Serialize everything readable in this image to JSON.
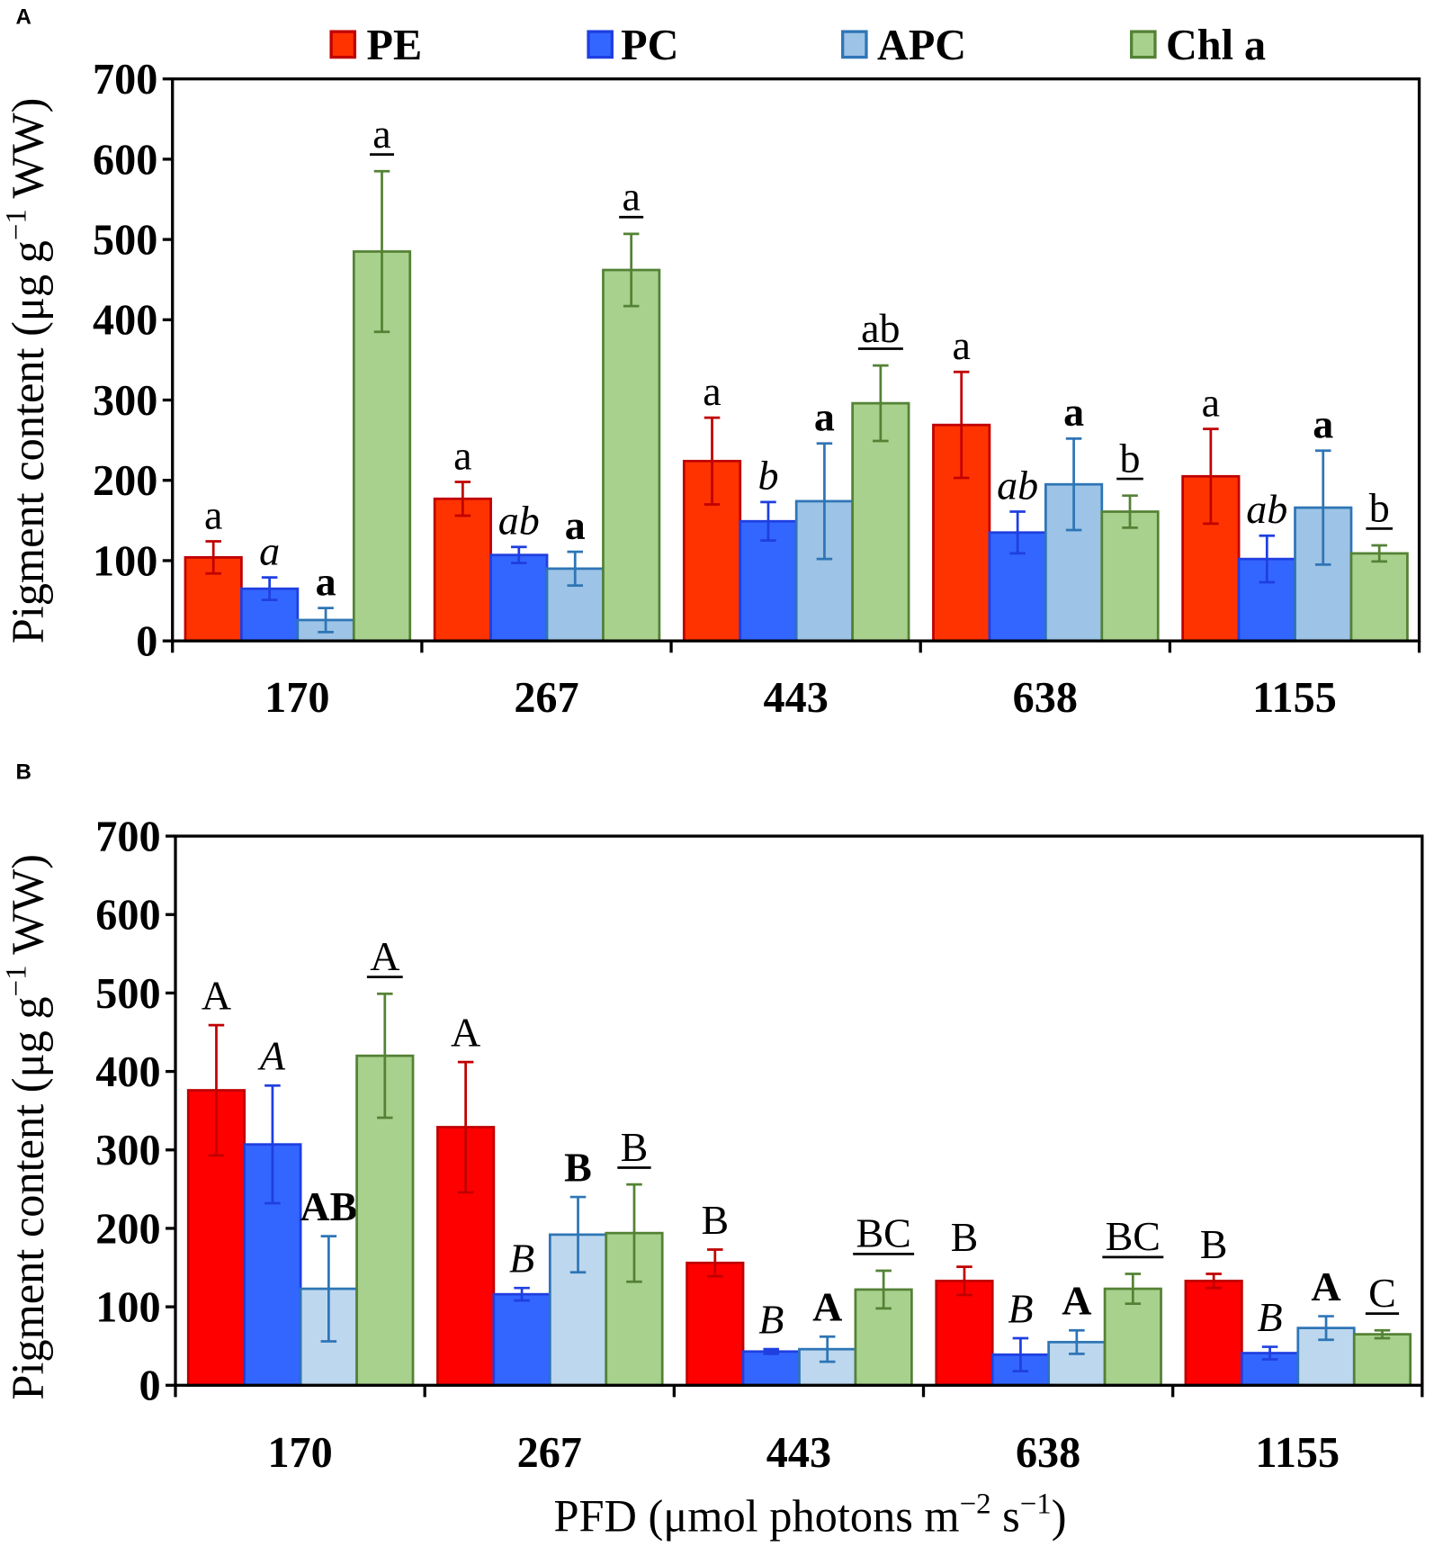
{
  "legend": [
    {
      "label": "PE",
      "color": "#FF3300",
      "edge": "#C00000"
    },
    {
      "label": "PC",
      "color": "#3366FF",
      "edge": "#1F3FE0"
    },
    {
      "label": "APC",
      "color": "#9DC3E6",
      "edge": "#2E75B6"
    },
    {
      "label": "Chl a",
      "color": "#A9D18E",
      "edge": "#548235"
    }
  ],
  "chart_data": [
    {
      "panel": "A",
      "type": "bar",
      "categories": [
        "170",
        "267",
        "443",
        "638",
        "1155"
      ],
      "ylabel": [
        "Pigment content (μg g",
        "−1",
        " WW)"
      ],
      "ylim": [
        0,
        700
      ],
      "yticks": [
        0,
        100,
        200,
        300,
        400,
        500,
        600,
        700
      ],
      "series": [
        {
          "name": "PE",
          "color": "#FF3300",
          "edge": "#C00000",
          "values": [
            104,
            177,
            224,
            269,
            205
          ],
          "errors": [
            20,
            21,
            54,
            66,
            59
          ],
          "letters": [
            "a",
            "a",
            "a",
            "a",
            "a"
          ]
        },
        {
          "name": "PC",
          "color": "#3366FF",
          "edge": "#1F3FE0",
          "values": [
            65,
            107,
            149,
            135,
            102
          ],
          "errors": [
            14,
            10,
            24,
            26,
            29
          ],
          "letters": [
            "a",
            "ab",
            "b",
            "ab",
            "ab"
          ]
        },
        {
          "name": "APC",
          "color": "#9DC3E6",
          "edge": "#2E75B6",
          "values": [
            26,
            90,
            174,
            195,
            166
          ],
          "errors": [
            15,
            21,
            72,
            57,
            71
          ],
          "letters": [
            "a",
            "a",
            "a",
            "a",
            "a"
          ]
        },
        {
          "name": "Chl a",
          "color": "#A9D18E",
          "edge": "#548235",
          "values": [
            485,
            462,
            296,
            161,
            109
          ],
          "errors": [
            100,
            45,
            47,
            20,
            10
          ],
          "letters": [
            "a",
            "a",
            "ab",
            "b",
            "b"
          ]
        }
      ]
    },
    {
      "panel": "B",
      "type": "bar",
      "categories": [
        "170",
        "267",
        "443",
        "638",
        "1155"
      ],
      "ylabel": [
        "Pigment content (μg g",
        "−1",
        " WW)"
      ],
      "xlabel": [
        "PFD (μmol photons m",
        "−2",
        " s",
        "−1",
        ")"
      ],
      "ylim": [
        0,
        700
      ],
      "yticks": [
        0,
        100,
        200,
        300,
        400,
        500,
        600,
        700
      ],
      "series": [
        {
          "name": "PE",
          "color": "#FF0000",
          "edge": "#C00000",
          "values": [
            376,
            329,
            156,
            133,
            133
          ],
          "errors": [
            83,
            83,
            17,
            18,
            9
          ],
          "letters": [
            "A",
            "A",
            "B",
            "B",
            "B"
          ]
        },
        {
          "name": "PC",
          "color": "#3366FF",
          "edge": "#1F3FE0",
          "values": [
            307,
            116,
            43,
            39,
            41
          ],
          "errors": [
            75,
            8,
            3,
            21,
            8
          ],
          "letters": [
            "A",
            "B",
            "B",
            "B",
            "B"
          ]
        },
        {
          "name": "APC",
          "color": "#BDD7EE",
          "edge": "#2E75B6",
          "values": [
            123,
            192,
            46,
            55,
            73
          ],
          "errors": [
            67,
            48,
            16,
            15,
            15
          ],
          "letters": [
            "AB",
            "B",
            "A",
            "A",
            "A"
          ]
        },
        {
          "name": "Chl a",
          "color": "#A9D18E",
          "edge": "#548235",
          "values": [
            420,
            194,
            122,
            123,
            65
          ],
          "errors": [
            79,
            62,
            24,
            19,
            5
          ],
          "letters": [
            "A",
            "B",
            "BC",
            "BC",
            "C"
          ]
        }
      ]
    }
  ]
}
